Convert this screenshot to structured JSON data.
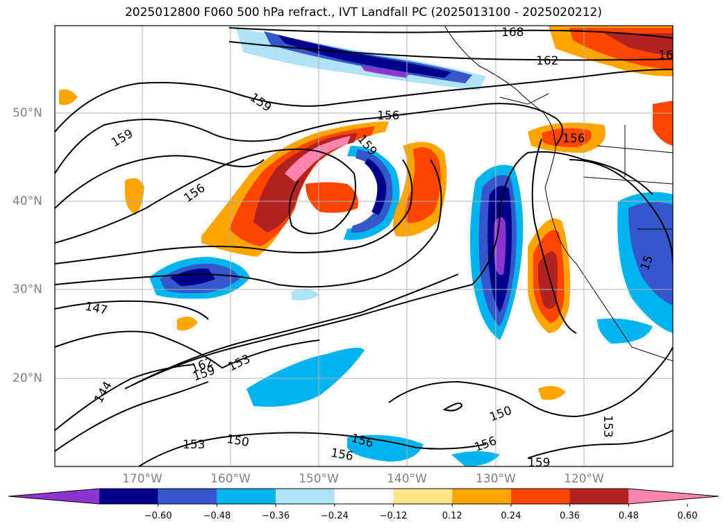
{
  "title": "2025012800 F060 500 hPa refract., IVT Landfall PC (2025013100 - 2025020212)",
  "latitude_labels": [
    "50°N",
    "40°N",
    "30°N",
    "20°N"
  ],
  "longitude_labels": [
    "170°W",
    "160°W",
    "150°W",
    "140°W",
    "130°W",
    "120°W"
  ],
  "colorbar": {
    "ticks": [
      "−0.60",
      "−0.48",
      "−0.36",
      "−0.24",
      "−0.12",
      "0.12",
      "0.24",
      "0.36",
      "0.48",
      "0.60"
    ],
    "colors": [
      "#8e35d0",
      "#00008b",
      "#3557cc",
      "#00b4f0",
      "#aee3f8",
      "#ffffff",
      "#fbe78a",
      "#ffa500",
      "#ff4500",
      "#b22222",
      "#ff85b0"
    ],
    "extend": "both"
  },
  "contour_labels": [
    "168",
    "162",
    "16",
    "159",
    "156",
    "159",
    "156",
    "159",
    "156",
    "147",
    "144",
    "162",
    "159",
    "153",
    "150",
    "153",
    "156",
    "156",
    "150",
    "153",
    "159",
    "156",
    "15"
  ],
  "map_type": "filled contour with line contours, Northeast Pacific / western North America",
  "colors": {
    "contour_line": "#000000",
    "grid": "#b0b0b0",
    "coast": "#000000"
  }
}
